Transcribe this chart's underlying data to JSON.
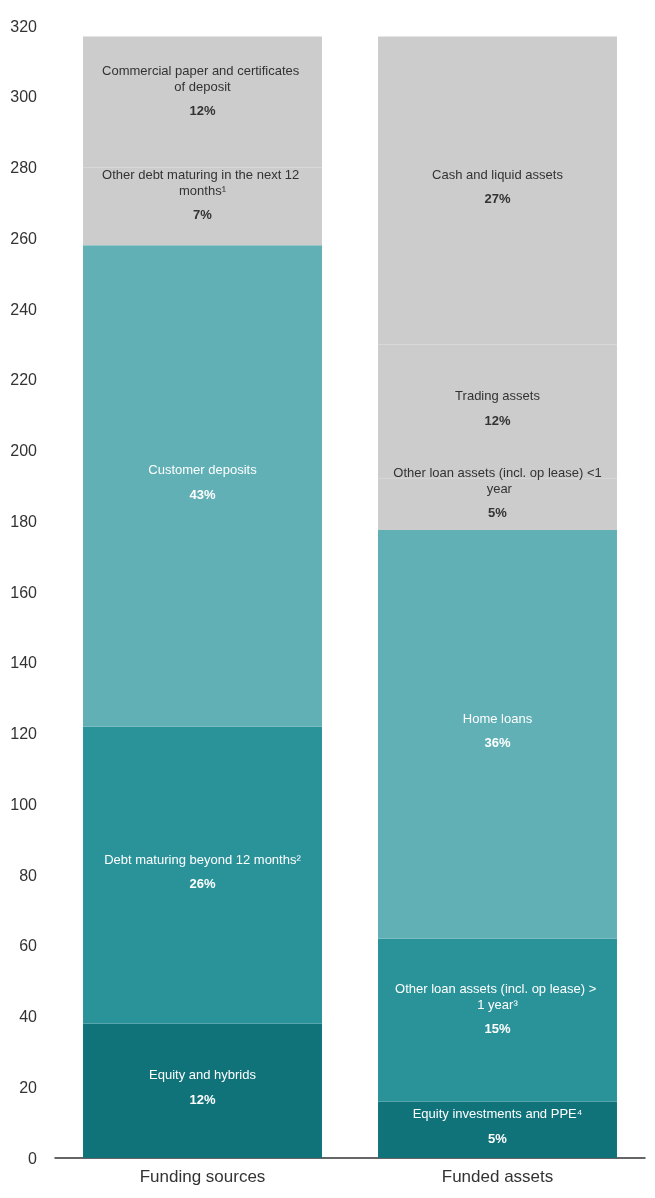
{
  "chart_data": {
    "type": "bar",
    "stacked": true,
    "categories": [
      "Funding sources",
      "Funded assets"
    ],
    "ylim": [
      0,
      320
    ],
    "yticks": [
      0,
      20,
      40,
      60,
      80,
      100,
      120,
      140,
      160,
      180,
      200,
      220,
      240,
      260,
      280,
      300,
      320
    ],
    "grid": false,
    "series": [
      {
        "name": "Equity and hybrids",
        "color": "#10737a",
        "values": [
          38,
          null
        ]
      },
      {
        "name": "Debt maturing beyond 12 months²",
        "color": "#2a9399",
        "values": [
          84,
          null
        ]
      },
      {
        "name": "Customer deposits",
        "color": "#60b0b6",
        "values": [
          136,
          null
        ]
      },
      {
        "name": "Other debt maturing in the next 12 months¹",
        "color": "#cccccc",
        "values": [
          22,
          null
        ]
      },
      {
        "name": "Commercial paper and certificates of deposit",
        "color": "#cccccc",
        "values": [
          37,
          null
        ]
      },
      {
        "name": "Equity investments and PPE⁴",
        "color": "#10737a",
        "values": [
          null,
          16
        ]
      },
      {
        "name": "Other loan assets (incl. op lease) > 1 year³",
        "color": "#2a9399",
        "values": [
          null,
          46
        ]
      },
      {
        "name": "Home loans",
        "color": "#60b0b6",
        "values": [
          null,
          115.5
        ]
      },
      {
        "name": "Other loan assets (incl. op lease) <1 year",
        "color": "#cccccc",
        "values": [
          null,
          14.5
        ]
      },
      {
        "name": "Trading assets",
        "color": "#cccccc",
        "values": [
          null,
          38
        ]
      },
      {
        "name": "Cash and liquid assets",
        "color": "#cccccc",
        "values": [
          null,
          87
        ]
      }
    ],
    "annotations": [
      "12%",
      "26%",
      "43%",
      "7%",
      "12%",
      "5%",
      "15%",
      "36%",
      "5%",
      "12%",
      "27%"
    ]
  }
}
